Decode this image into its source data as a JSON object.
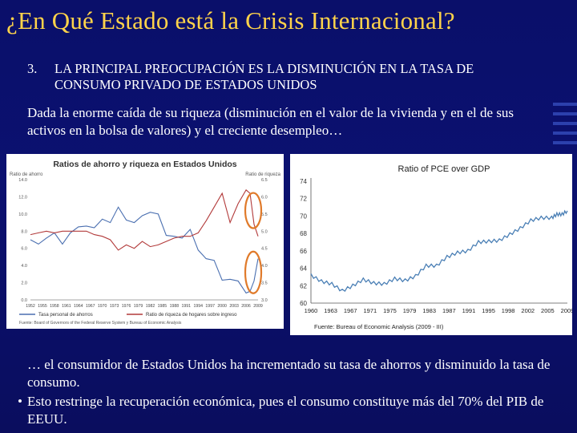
{
  "slide": {
    "title": "¿En Qué Estado está la Crisis Internacional?",
    "point_number": "3.",
    "point_text": "LA PRINCIPAL PREOCUPACIÓN ES LA DISMINUCIÓN EN LA TASA DE CONSUMO PRIVADO DE ESTADOS UNIDOS",
    "intro": "Dada la enorme caída de su riqueza (disminución en el valor de la vivienda y en el de sus activos en la bolsa de valores) y el creciente desempleo…",
    "conclusion": "… el consumidor de Estados Unidos ha incrementado su tasa de ahorros y disminuido la tasa de consumo.",
    "bullet_symbol": "•",
    "bullet": "Esto restringe la recuperación económica, pues el consumo constituye más del 70% del PIB de EEUU.",
    "colors": {
      "title": "#ffd34a",
      "background": "#0a0f6a",
      "text": "#ffffff",
      "highlight_circle": "#e07a2a"
    }
  },
  "chart_data": [
    {
      "type": "line",
      "title": "Ratios de ahorro y riqueza en Estados Unidos",
      "ylabel_left": "Ratio de ahorro",
      "ylabel_right": "Ratio de riqueza",
      "left_ticks": [
        "14.0",
        "12.0",
        "10.0",
        "8.0",
        "6.0",
        "4.0",
        "2.0",
        "0.0"
      ],
      "right_ticks": [
        "6.5",
        "6.0",
        "5.5",
        "5.0",
        "4.5",
        "4.0",
        "3.5",
        "3.0"
      ],
      "ylim_left": [
        0,
        14
      ],
      "ylim_right": [
        3.0,
        6.5
      ],
      "x_ticks": [
        "1952",
        "1955",
        "1958",
        "1961",
        "1964",
        "1967",
        "1970",
        "1973",
        "1976",
        "1979",
        "1982",
        "1985",
        "1988",
        "1991",
        "1994",
        "1997",
        "2000",
        "2003",
        "2006",
        "2009"
      ],
      "series": [
        {
          "name": "Tasa personal de ahorros",
          "color": "#4a6fb0",
          "axis": "left",
          "x": [
            1952,
            1954,
            1956,
            1958,
            1960,
            1962,
            1964,
            1966,
            1968,
            1970,
            1972,
            1974,
            1976,
            1978,
            1980,
            1982,
            1984,
            1986,
            1988,
            1990,
            1992,
            1994,
            1996,
            1998,
            2000,
            2002,
            2004,
            2006,
            2007,
            2008,
            2009
          ],
          "values": [
            7.0,
            6.5,
            7.2,
            7.8,
            6.5,
            7.8,
            8.5,
            8.6,
            8.4,
            9.4,
            9.0,
            10.8,
            9.3,
            9.0,
            9.8,
            10.2,
            10.0,
            7.5,
            7.4,
            7.2,
            8.2,
            5.8,
            4.8,
            4.6,
            2.3,
            2.4,
            2.2,
            0.8,
            1.0,
            2.2,
            4.8
          ]
        },
        {
          "name": "Ratio de riqueza de hogares sobre ingreso",
          "color": "#b23a3a",
          "axis": "right",
          "x": [
            1952,
            1954,
            1956,
            1958,
            1960,
            1962,
            1964,
            1966,
            1968,
            1970,
            1972,
            1974,
            1976,
            1978,
            1980,
            1982,
            1984,
            1986,
            1988,
            1990,
            1992,
            1994,
            1996,
            1998,
            2000,
            2002,
            2004,
            2006,
            2007,
            2008,
            2009
          ],
          "values": [
            4.9,
            4.95,
            5.0,
            4.95,
            5.0,
            5.0,
            5.0,
            5.0,
            4.9,
            4.85,
            4.75,
            4.45,
            4.6,
            4.5,
            4.7,
            4.55,
            4.6,
            4.7,
            4.8,
            4.85,
            4.85,
            4.95,
            5.3,
            5.7,
            6.1,
            5.25,
            5.8,
            6.2,
            6.1,
            5.2,
            4.85
          ]
        }
      ],
      "source": "Fuente: Board of Governors of the Federal Reserve System y Bureau of Economic Analysis",
      "grid": false,
      "legend": "bottom"
    },
    {
      "type": "line",
      "title": "Ratio of PCE over GDP",
      "y_ticks": [
        "74",
        "72",
        "70",
        "68",
        "66",
        "64",
        "62",
        "60"
      ],
      "ylim": [
        60,
        74
      ],
      "x_ticks": [
        "1960",
        "1963",
        "1967",
        "1971",
        "1975",
        "1979",
        "1983",
        "1987",
        "1991",
        "1995",
        "1998",
        "2002",
        "2005",
        "2009"
      ],
      "series": [
        {
          "color": "#4a7fb5",
          "x": [
            1960,
            1962,
            1964,
            1966,
            1968,
            1970,
            1972,
            1974,
            1976,
            1978,
            1980,
            1982,
            1984,
            1986,
            1988,
            1990,
            1992,
            1994,
            1996,
            1998,
            2000,
            2002,
            2004,
            2006,
            2007,
            2008,
            2009
          ],
          "values": [
            63.2,
            62.5,
            62.2,
            61.4,
            62.0,
            62.7,
            62.3,
            62.2,
            62.8,
            62.6,
            63.1,
            64.3,
            64.3,
            65.3,
            65.8,
            66.0,
            67.0,
            67.1,
            67.2,
            67.9,
            68.6,
            69.5,
            69.8,
            69.8,
            70.2,
            70.2,
            70.6
          ]
        }
      ],
      "source": "Fuente: Bureau of Economic Analysis (2009 - III)",
      "grid": false
    }
  ]
}
